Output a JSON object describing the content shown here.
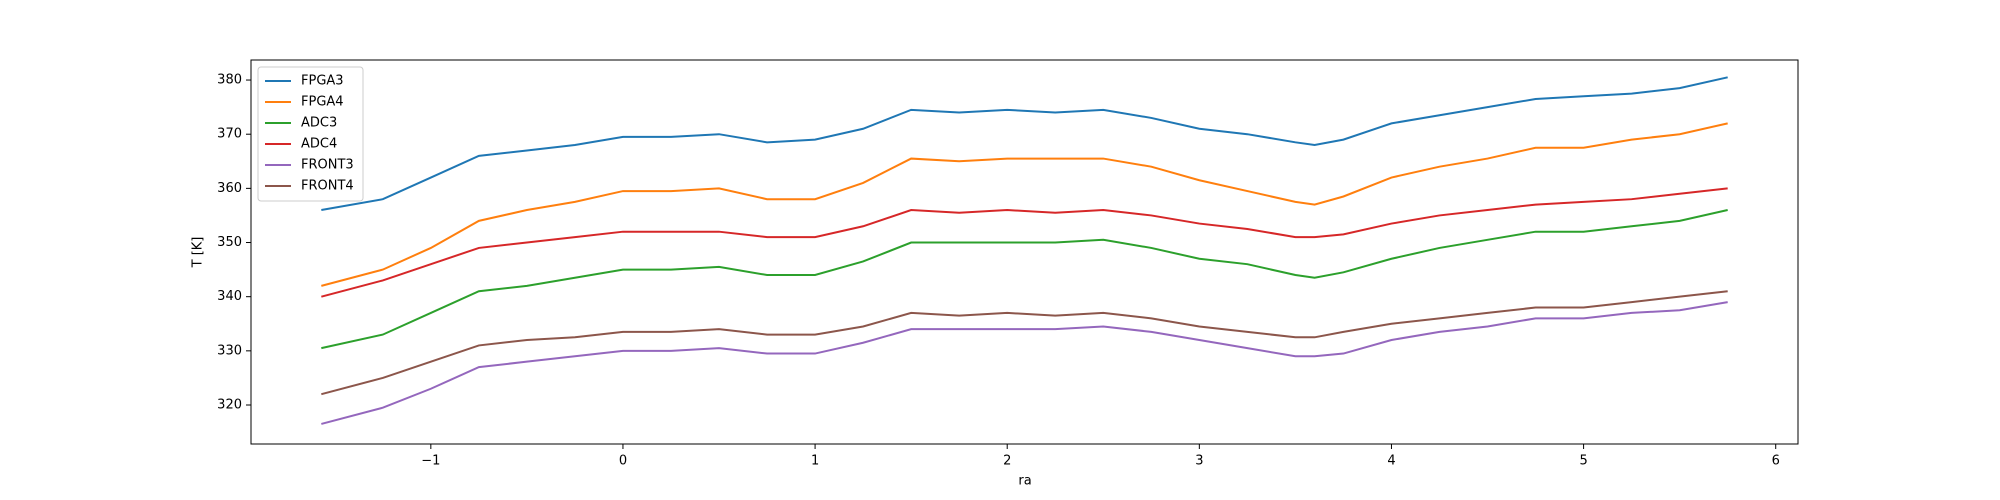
{
  "chart_data": {
    "type": "line",
    "xlabel": "ra",
    "ylabel": "T [K]",
    "x": [
      -1.57,
      -1.25,
      -1,
      -0.75,
      -0.5,
      -0.25,
      0,
      0.25,
      0.5,
      0.75,
      1,
      1.25,
      1.5,
      1.75,
      2,
      2.25,
      2.5,
      2.75,
      3,
      3.25,
      3.5,
      3.6,
      3.75,
      4,
      4.25,
      4.5,
      4.75,
      5,
      5.25,
      5.5,
      5.75
    ],
    "series": [
      {
        "name": "FPGA3",
        "color": "#1f77b4",
        "values": [
          356,
          358,
          362,
          366,
          367,
          368,
          369.5,
          369.5,
          370,
          368.5,
          369,
          371,
          374.5,
          374,
          374.5,
          374,
          374.5,
          373,
          371,
          370,
          368.5,
          368,
          369,
          372,
          373.5,
          375,
          376.5,
          377,
          377.5,
          378.5,
          380.5
        ]
      },
      {
        "name": "FPGA4",
        "color": "#ff7f0e",
        "values": [
          342,
          345,
          349,
          354,
          356,
          357.5,
          359.5,
          359.5,
          360,
          358,
          358,
          361,
          365.5,
          365,
          365.5,
          365.5,
          365.5,
          364,
          361.5,
          359.5,
          357.5,
          357,
          358.5,
          362,
          364,
          365.5,
          367.5,
          367.5,
          369,
          370,
          372
        ]
      },
      {
        "name": "ADC3",
        "color": "#2ca02c",
        "values": [
          330.5,
          333,
          337,
          341,
          342,
          343.5,
          345,
          345,
          345.5,
          344,
          344,
          346.5,
          350,
          350,
          350,
          350,
          350.5,
          349,
          347,
          346,
          344,
          343.5,
          344.5,
          347,
          349,
          350.5,
          352,
          352,
          353,
          354,
          356
        ]
      },
      {
        "name": "ADC4",
        "color": "#d62728",
        "values": [
          340,
          343,
          346,
          349,
          350,
          351,
          352,
          352,
          352,
          351,
          351,
          353,
          356,
          355.5,
          356,
          355.5,
          356,
          355,
          353.5,
          352.5,
          351,
          351,
          351.5,
          353.5,
          355,
          356,
          357,
          357.5,
          358,
          359,
          360
        ]
      },
      {
        "name": "FRONT3",
        "color": "#9467bd",
        "values": [
          316.5,
          319.5,
          323,
          327,
          328,
          329,
          330,
          330,
          330.5,
          329.5,
          329.5,
          331.5,
          334,
          334,
          334,
          334,
          334.5,
          333.5,
          332,
          330.5,
          329,
          329,
          329.5,
          332,
          333.5,
          334.5,
          336,
          336,
          337,
          337.5,
          339
        ]
      },
      {
        "name": "FRONT4",
        "color": "#8c564b",
        "values": [
          322,
          325,
          328,
          331,
          332,
          332.5,
          333.5,
          333.5,
          334,
          333,
          333,
          334.5,
          337,
          336.5,
          337,
          336.5,
          337,
          336,
          334.5,
          333.5,
          332.5,
          332.5,
          333.5,
          335,
          336,
          337,
          338,
          338,
          339,
          340,
          341
        ]
      }
    ],
    "xlim": [
      -1.936,
      6.116
    ],
    "xticks": [
      {
        "value": -1,
        "label": "−1"
      },
      0,
      1,
      2,
      3,
      4,
      5,
      6
    ],
    "ylim": [
      312.8,
      383.7
    ],
    "yticks": [
      320,
      330,
      340,
      350,
      360,
      370,
      380
    ],
    "grid": false,
    "legend": "upper left"
  }
}
